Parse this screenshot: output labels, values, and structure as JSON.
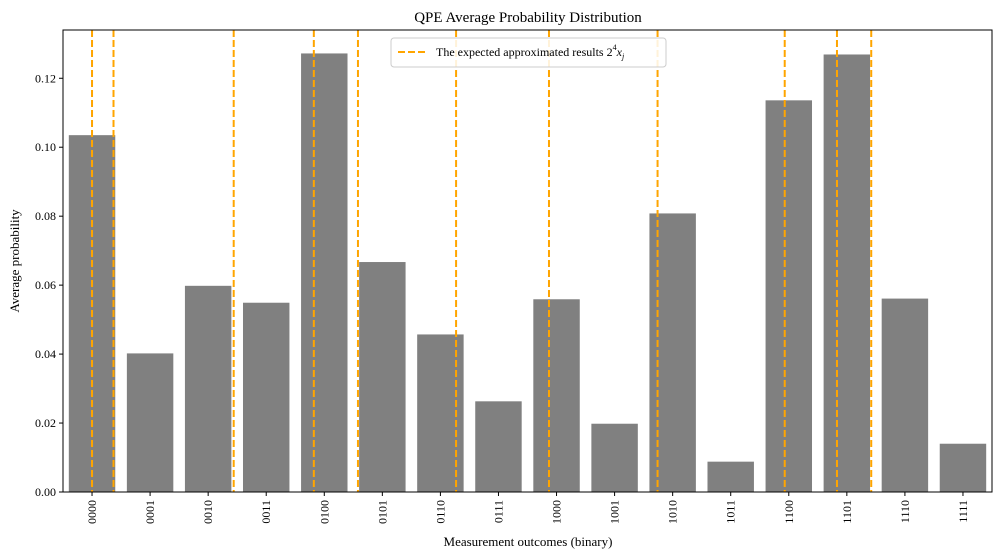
{
  "chart_data": {
    "type": "bar",
    "title": "QPE Average Probability Distribution",
    "xlabel": "Measurement outcomes (binary)",
    "ylabel": "Average probability",
    "categories": [
      "0000",
      "0001",
      "0010",
      "0011",
      "0100",
      "0101",
      "0110",
      "0111",
      "1000",
      "1001",
      "1010",
      "1011",
      "1100",
      "1101",
      "1110",
      "1111"
    ],
    "values": [
      0.1035,
      0.0402,
      0.0598,
      0.0549,
      0.1272,
      0.0667,
      0.0457,
      0.0263,
      0.0559,
      0.0198,
      0.0808,
      0.0088,
      0.1136,
      0.1269,
      0.0561,
      0.014
    ],
    "bar_color": "#808080",
    "ylim": [
      0,
      0.134
    ],
    "yticks": [
      0.0,
      0.02,
      0.04,
      0.06,
      0.08,
      0.1,
      0.12
    ],
    "ytick_labels": [
      "0.00",
      "0.02",
      "0.04",
      "0.06",
      "0.08",
      "0.10",
      "0.12"
    ],
    "xlim": [
      -0.5,
      15.5
    ],
    "expected_lines": {
      "x": [
        0.0,
        0.37,
        2.44,
        3.82,
        4.58,
        6.27,
        7.87,
        9.74,
        11.93,
        12.83,
        13.42
      ],
      "color": "#FFA500",
      "style": "dashed"
    },
    "legend": {
      "position": "top-center",
      "label_text": "The expected approximated results ",
      "label_math_base": "2",
      "label_math_exp": "4",
      "label_math_var": "x",
      "label_math_sub": "j"
    },
    "grid": false
  }
}
